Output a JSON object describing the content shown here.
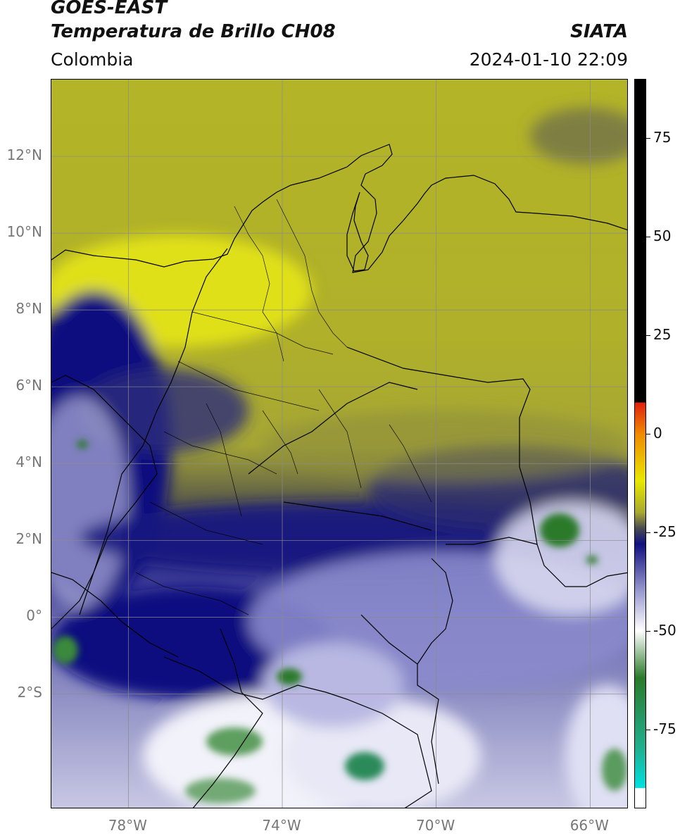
{
  "header": {
    "satellite": "GOES-EAST",
    "product": "Temperatura de Brillo CH08",
    "region": "Colombia",
    "brand": "SIATA",
    "datetime": "2024-01-10 22:09"
  },
  "map": {
    "lat_labels": [
      "12°N",
      "10°N",
      "8°N",
      "6°N",
      "4°N",
      "2°N",
      "0°",
      "2°S"
    ],
    "lat_values": [
      12,
      10,
      8,
      6,
      4,
      2,
      0,
      -2
    ],
    "lon_labels": [
      "78°W",
      "74°W",
      "70°W",
      "66°W"
    ],
    "lon_values": [
      -78,
      -74,
      -70,
      -66
    ],
    "lat_range": [
      -5,
      14
    ],
    "lon_range": [
      -80,
      -65
    ]
  },
  "colorbar": {
    "tick_labels": [
      "75",
      "50",
      "25",
      "0",
      "-25",
      "-50",
      "-75"
    ],
    "tick_values": [
      75,
      50,
      25,
      0,
      -25,
      -50,
      -75
    ],
    "range": [
      -95,
      90
    ],
    "colors": {
      "warm_black": "#000000",
      "red": "#e02010",
      "orange": "#f08a00",
      "yellow": "#e8e800",
      "olive": "#a8a830",
      "dark_gray": "#4a4a52",
      "navy": "#101080",
      "light_purple": "#9a9ad0",
      "white": "#ffffff",
      "green": "#2a7a2a",
      "teal": "#20b090",
      "cyan": "#00e0e0"
    }
  }
}
